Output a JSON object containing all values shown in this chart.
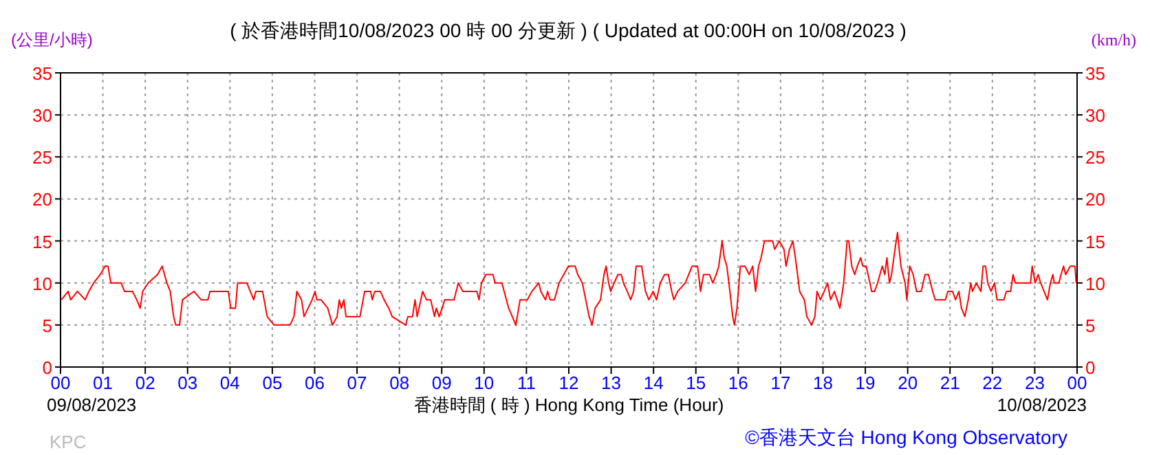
{
  "chart_data": {
    "type": "line",
    "title": "( 於香港時間10/08/2023 00 時 00 分更新 ) ( Updated at 00:00H on 10/08/2023 )",
    "xlabel": "香港時間 ( 時 ) Hong Kong Time (Hour)",
    "ylabel": "(公里/小時)",
    "y2label": "(km/h)",
    "annotations": [
      "09/08/2023",
      "10/08/2023",
      "KPC",
      "©香港天文台 Hong Kong Observatory"
    ],
    "x": [
      0.02,
      0.18,
      0.24,
      0.4,
      0.58,
      0.67,
      0.78,
      0.94,
      1.05,
      1.12,
      1.19,
      1.43,
      1.51,
      1.7,
      1.8,
      1.88,
      1.94,
      2.07,
      2.29,
      2.4,
      2.51,
      2.59,
      2.67,
      2.72,
      2.81,
      2.88,
      3.15,
      3.32,
      3.48,
      3.53,
      3.96,
      4.02,
      4.13,
      4.18,
      4.4,
      4.56,
      4.61,
      4.77,
      4.88,
      5.04,
      5.42,
      5.51,
      5.58,
      5.69,
      5.75,
      5.94,
      6.01,
      6.05,
      6.15,
      6.31,
      6.42,
      6.53,
      6.58,
      6.63,
      6.69,
      6.74,
      7.07,
      7.18,
      7.32,
      7.36,
      7.42,
      7.55,
      7.64,
      7.75,
      7.83,
      8.15,
      8.2,
      8.31,
      8.37,
      8.42,
      8.55,
      8.64,
      8.74,
      8.83,
      8.87,
      8.94,
      9.01,
      9.07,
      9.29,
      9.39,
      9.5,
      9.83,
      9.88,
      9.94,
      10.04,
      10.21,
      10.26,
      10.42,
      10.58,
      10.75,
      10.85,
      11.02,
      11.13,
      11.29,
      11.34,
      11.45,
      11.5,
      11.56,
      11.66,
      11.77,
      11.88,
      11.99,
      12.15,
      12.21,
      12.32,
      12.4,
      12.48,
      12.55,
      12.62,
      12.75,
      12.83,
      12.88,
      12.94,
      12.99,
      13.07,
      13.16,
      13.24,
      13.29,
      13.38,
      13.46,
      13.53,
      13.59,
      13.72,
      13.81,
      13.89,
      13.99,
      14.07,
      14.16,
      14.26,
      14.35,
      14.43,
      14.48,
      14.57,
      14.75,
      14.83,
      14.91,
      15.04,
      15.11,
      15.18,
      15.32,
      15.4,
      15.48,
      15.54,
      15.62,
      15.67,
      15.73,
      15.78,
      15.87,
      15.91,
      15.97,
      16.05,
      16.16,
      16.26,
      16.34,
      16.41,
      16.48,
      16.54,
      16.62,
      16.81,
      16.86,
      16.97,
      17.08,
      17.13,
      17.21,
      17.29,
      17.35,
      17.45,
      17.56,
      17.62,
      17.73,
      17.81,
      17.86,
      17.94,
      18.03,
      18.11,
      18.18,
      18.27,
      18.4,
      18.49,
      18.57,
      18.61,
      18.68,
      18.75,
      18.81,
      18.89,
      18.94,
      19.02,
      19.11,
      19.15,
      19.22,
      19.29,
      19.4,
      19.46,
      19.51,
      19.57,
      19.62,
      19.7,
      19.76,
      19.84,
      19.89,
      19.94,
      19.98,
      20.05,
      20.13,
      20.21,
      20.32,
      20.41,
      20.49,
      20.59,
      20.65,
      20.89,
      20.95,
      21.06,
      21.13,
      21.21,
      21.27,
      21.35,
      21.43,
      21.49,
      21.53,
      21.62,
      21.73,
      21.78,
      21.84,
      21.89,
      21.97,
      22.05,
      22.11,
      22.27,
      22.33,
      22.43,
      22.49,
      22.54,
      22.9,
      22.94,
      23.01,
      23.08,
      23.14,
      23.22,
      23.3,
      23.37,
      23.43,
      23.46,
      23.57,
      23.62,
      23.68,
      23.73,
      23.84,
      23.95,
      23.98
    ],
    "series": [
      {
        "color": "#ff0000",
        "values": [
          8,
          9,
          8,
          9,
          8,
          9,
          10,
          11,
          12,
          12,
          10,
          10,
          9,
          9,
          8,
          7,
          9,
          10,
          11,
          12,
          10,
          9,
          6,
          5,
          5,
          8,
          9,
          8,
          8,
          9,
          9,
          7,
          7,
          10,
          10,
          8,
          9,
          9,
          6,
          5,
          5,
          6,
          9,
          8,
          6,
          8,
          9,
          8,
          8,
          7,
          5,
          6,
          8,
          7,
          8,
          6,
          6,
          9,
          9,
          8,
          9,
          9,
          8,
          7,
          6,
          5,
          6,
          6,
          8,
          6,
          9,
          8,
          8,
          6,
          7,
          6,
          7,
          8,
          8,
          10,
          9,
          9,
          8,
          10,
          11,
          11,
          10,
          10,
          7,
          5,
          8,
          8,
          9,
          10,
          9,
          8,
          9,
          8,
          8,
          10,
          11,
          12,
          12,
          11,
          10,
          8,
          6,
          5,
          7,
          8,
          11,
          12,
          10,
          9,
          10,
          11,
          11,
          10,
          9,
          8,
          9,
          12,
          12,
          9,
          8,
          9,
          8,
          10,
          11,
          11,
          9,
          8,
          9,
          10,
          11,
          12,
          12,
          9,
          11,
          11,
          10,
          11,
          12,
          15,
          13,
          12,
          10,
          6,
          5,
          7,
          12,
          12,
          11,
          12,
          9,
          12,
          13,
          15,
          15,
          14,
          15,
          14,
          12,
          14,
          15,
          13,
          9,
          8,
          6,
          5,
          6,
          9,
          8,
          9,
          10,
          8,
          9,
          7,
          10,
          15,
          15,
          12,
          11,
          12,
          13,
          12,
          12,
          10,
          9,
          9,
          10,
          12,
          11,
          13,
          10,
          11,
          14,
          16,
          12,
          11,
          10,
          8,
          12,
          11,
          9,
          9,
          11,
          11,
          9,
          8,
          8,
          9,
          9,
          8,
          9,
          7,
          6,
          8,
          10,
          9,
          10,
          9,
          12,
          12,
          10,
          9,
          10,
          8,
          8,
          9,
          9,
          11,
          10,
          10,
          12,
          10,
          11,
          10,
          9,
          8,
          10,
          11,
          10,
          10,
          11,
          12,
          11,
          12,
          12,
          10
        ]
      }
    ],
    "xlim": [
      0,
      24
    ],
    "xticks": [
      {
        "value": 0,
        "label": "00"
      },
      {
        "value": 1,
        "label": "01"
      },
      {
        "value": 2,
        "label": "02"
      },
      {
        "value": 3,
        "label": "03"
      },
      {
        "value": 4,
        "label": "04"
      },
      {
        "value": 5,
        "label": "05"
      },
      {
        "value": 6,
        "label": "06"
      },
      {
        "value": 7,
        "label": "07"
      },
      {
        "value": 8,
        "label": "08"
      },
      {
        "value": 9,
        "label": "09"
      },
      10,
      11,
      12,
      13,
      14,
      15,
      16,
      17,
      18,
      19,
      20,
      21,
      22,
      23,
      {
        "value": 24,
        "label": "00"
      }
    ],
    "ylim": [
      0,
      35
    ],
    "yticks": [
      0,
      5,
      10,
      15,
      20,
      25,
      30,
      35
    ],
    "y2lim": [
      0,
      35
    ],
    "y2ticks": [
      0,
      5,
      10,
      15,
      20,
      25,
      30,
      35
    ],
    "grid": true,
    "line_style": "solid",
    "marker": "none"
  }
}
